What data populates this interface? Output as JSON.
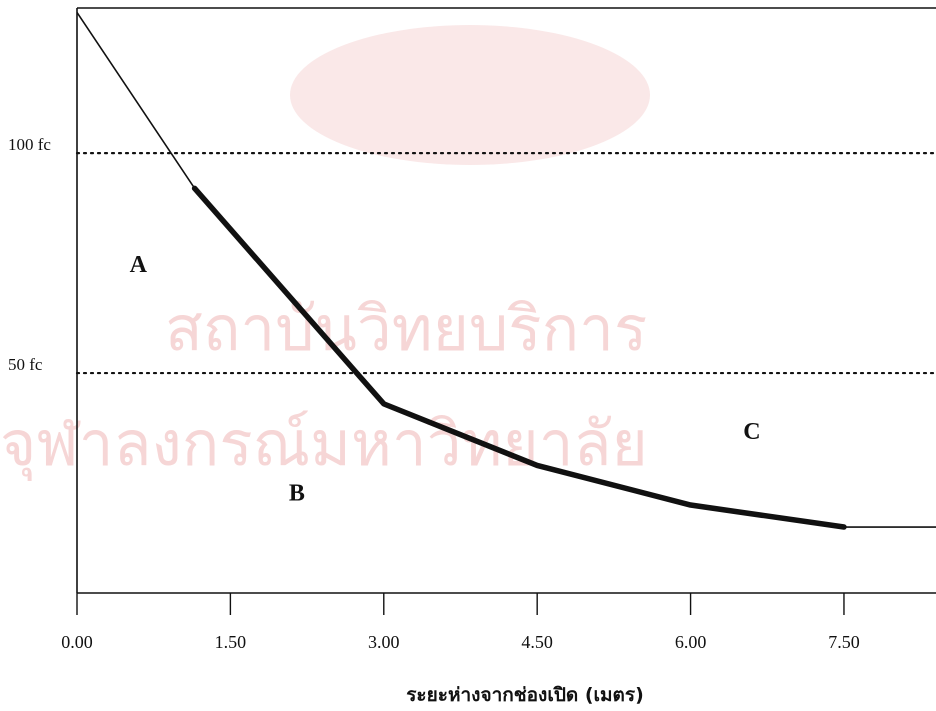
{
  "chart_data": {
    "type": "line",
    "title": "",
    "xlabel": "ระยะห่างจากช่องเปิด (เมตร)",
    "ylabel": "",
    "x_ticks": [
      "0.00",
      "1.50",
      "3.00",
      "4.50",
      "6.00",
      "7.50"
    ],
    "x_tick_values": [
      0,
      1.5,
      3,
      4.5,
      6,
      7.5
    ],
    "xlim": [
      0,
      8.4
    ],
    "ylim": [
      0,
      133
    ],
    "series": [
      {
        "name": "",
        "x": [
          0,
          1.15,
          3.0,
          4.5,
          6.0,
          7.5,
          8.4
        ],
        "y": [
          132,
          92,
          43,
          29,
          20,
          15,
          15
        ],
        "emphasized_range_x": [
          1.15,
          7.5
        ]
      }
    ],
    "reference_lines": [
      {
        "label": "100 fc",
        "y": 100,
        "style": "dotted"
      },
      {
        "label": "50 fc",
        "y": 50,
        "style": "dotted"
      }
    ],
    "region_labels": [
      {
        "text": "A",
        "x": 0.6,
        "y": 73
      },
      {
        "text": "B",
        "x": 2.15,
        "y": 21
      },
      {
        "text": "C",
        "x": 6.6,
        "y": 35
      }
    ],
    "grid": false,
    "legend": "none"
  },
  "watermark": {
    "line1": "สถาบันวิทยบริการ",
    "line2": "จุฬาลงกรณ์มหาวิทยาลัย"
  },
  "colors": {
    "line": "#111111",
    "axis": "#111111",
    "watermark": "#f3c9c9"
  }
}
